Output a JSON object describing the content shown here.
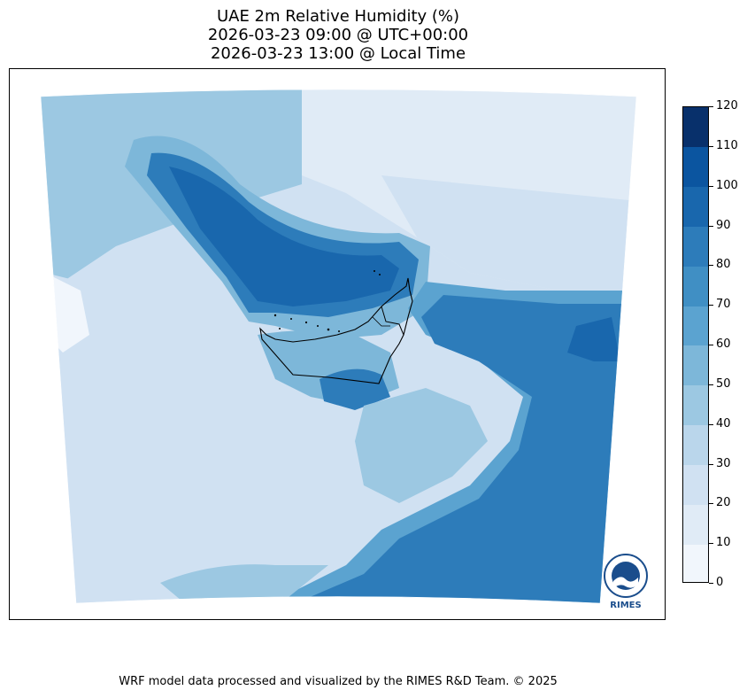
{
  "title": {
    "line1": "UAE 2m Relative Humidity (%)",
    "line2": "2026-03-23 09:00 @ UTC+00:00",
    "line3": "2026-03-23 13:00 @ Local Time"
  },
  "colorbar": {
    "ticks": [
      "0",
      "10",
      "20",
      "30",
      "40",
      "50",
      "60",
      "70",
      "80",
      "90",
      "100",
      "110",
      "120"
    ],
    "colors": [
      "#f1f6fc",
      "#e0ebf6",
      "#d0e1f2",
      "#bad6eb",
      "#9cc8e2",
      "#7db7d9",
      "#5ba3d0",
      "#408fc4",
      "#2d7cba",
      "#1967ad",
      "#0b55a0",
      "#08306b"
    ]
  },
  "logo": {
    "text": "RIMES"
  },
  "footer": "WRF model data processed and visualized by the RIMES R&D Team. © 2025"
}
